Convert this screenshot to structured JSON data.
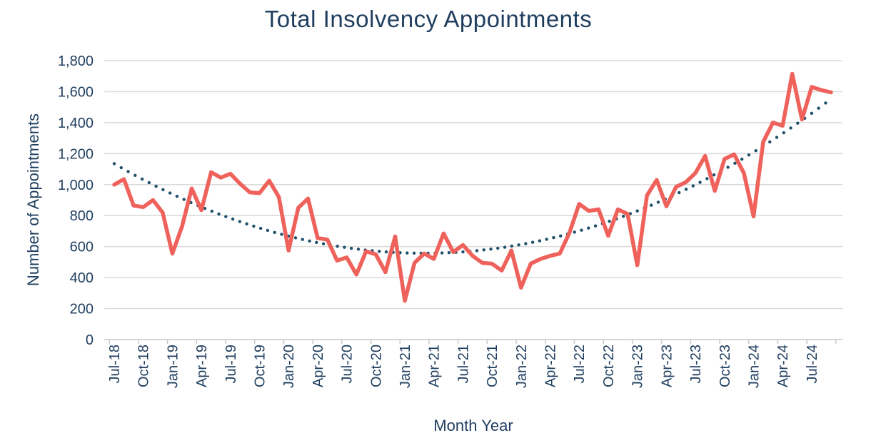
{
  "title": "Total Insolvency Appointments",
  "colors": {
    "title_text": "#1f3e5f",
    "axis_text": "#1f3e5f",
    "series_line": "#ef615b",
    "trend_dots": "#1f506b",
    "gridline": "#dadada",
    "axis_line": "#c9c9c9"
  },
  "chart_data": {
    "type": "line",
    "title": "Total Insolvency Appointments",
    "xlabel": "Month Year",
    "ylabel": "Number of Appointments",
    "ylim": [
      0,
      1800
    ],
    "y_tick_step": 200,
    "y_tick_labels": [
      "0",
      "200",
      "400",
      "600",
      "800",
      "1,000",
      "1,200",
      "1,400",
      "1,600",
      "1,800"
    ],
    "x_tick_labels": [
      "Jul-18",
      "Oct-18",
      "Jan-19",
      "Apr-19",
      "Jul-19",
      "Oct-19",
      "Jan-20",
      "Apr-20",
      "Jul-20",
      "Oct-20",
      "Jan-21",
      "Apr-21",
      "Jul-21",
      "Oct-21",
      "Jan-22",
      "Apr-22",
      "Jul-22",
      "Oct-22",
      "Jan-23",
      "Apr-23",
      "Jul-23",
      "Oct-23",
      "Jan-24",
      "Apr-24",
      "Jul-24"
    ],
    "grid": "horizontal",
    "legend": "none",
    "x": [
      "Jul-18",
      "Aug-18",
      "Sep-18",
      "Oct-18",
      "Nov-18",
      "Dec-18",
      "Jan-19",
      "Feb-19",
      "Mar-19",
      "Apr-19",
      "May-19",
      "Jun-19",
      "Jul-19",
      "Aug-19",
      "Sep-19",
      "Oct-19",
      "Nov-19",
      "Dec-19",
      "Jan-20",
      "Feb-20",
      "Mar-20",
      "Apr-20",
      "May-20",
      "Jun-20",
      "Jul-20",
      "Aug-20",
      "Sep-20",
      "Oct-20",
      "Nov-20",
      "Dec-20",
      "Jan-21",
      "Feb-21",
      "Mar-21",
      "Apr-21",
      "May-21",
      "Jun-21",
      "Jul-21",
      "Aug-21",
      "Sep-21",
      "Oct-21",
      "Nov-21",
      "Dec-21",
      "Jan-22",
      "Feb-22",
      "Mar-22",
      "Apr-22",
      "May-22",
      "Jun-22",
      "Jul-22",
      "Aug-22",
      "Sep-22",
      "Oct-22",
      "Nov-22",
      "Dec-22",
      "Jan-23",
      "Feb-23",
      "Mar-23",
      "Apr-23",
      "May-23",
      "Jun-23",
      "Jul-23",
      "Aug-23",
      "Sep-23",
      "Oct-23",
      "Nov-23",
      "Dec-23",
      "Jan-24",
      "Feb-24",
      "Mar-24",
      "Apr-24",
      "May-24",
      "Jun-24",
      "Jul-24",
      "Aug-24",
      "Sep-24"
    ],
    "series": [
      {
        "name": "Total insolvency appointments",
        "style": "solid-line",
        "color": "#ef615b",
        "values": [
          1000,
          1035,
          865,
          855,
          900,
          820,
          555,
          730,
          975,
          835,
          1080,
          1045,
          1070,
          1005,
          950,
          945,
          1025,
          920,
          575,
          850,
          910,
          655,
          645,
          510,
          530,
          420,
          570,
          550,
          435,
          665,
          250,
          495,
          555,
          520,
          685,
          565,
          610,
          540,
          495,
          490,
          445,
          575,
          335,
          490,
          520,
          540,
          555,
          690,
          875,
          830,
          840,
          670,
          840,
          810,
          480,
          930,
          1030,
          860,
          985,
          1015,
          1075,
          1185,
          960,
          1165,
          1195,
          1075,
          795,
          1275,
          1400,
          1380,
          1715,
          1420,
          1630,
          1610,
          1595
        ]
      },
      {
        "name": "Polynomial trendline",
        "style": "dotted-curve",
        "color": "#1f506b",
        "quadratic": {
          "a": 0.5645,
          "vertex_t": 32,
          "min": 557
        },
        "values": [
          1135,
          1100,
          1065,
          1032,
          1000,
          969,
          939,
          910,
          882,
          856,
          830,
          806,
          783,
          761,
          740,
          720,
          702,
          684,
          668,
          652,
          638,
          625,
          614,
          603,
          593,
          585,
          577,
          571,
          566,
          562,
          559,
          558,
          557,
          558,
          559,
          562,
          566,
          571,
          577,
          585,
          593,
          603,
          614,
          625,
          638,
          652,
          668,
          684,
          702,
          720,
          740,
          761,
          783,
          806,
          830,
          856,
          882,
          910,
          939,
          969,
          1000,
          1032,
          1065,
          1100,
          1135,
          1172,
          1210,
          1249,
          1289,
          1331,
          1373,
          1417,
          1462,
          1508,
          1556
        ]
      }
    ]
  }
}
